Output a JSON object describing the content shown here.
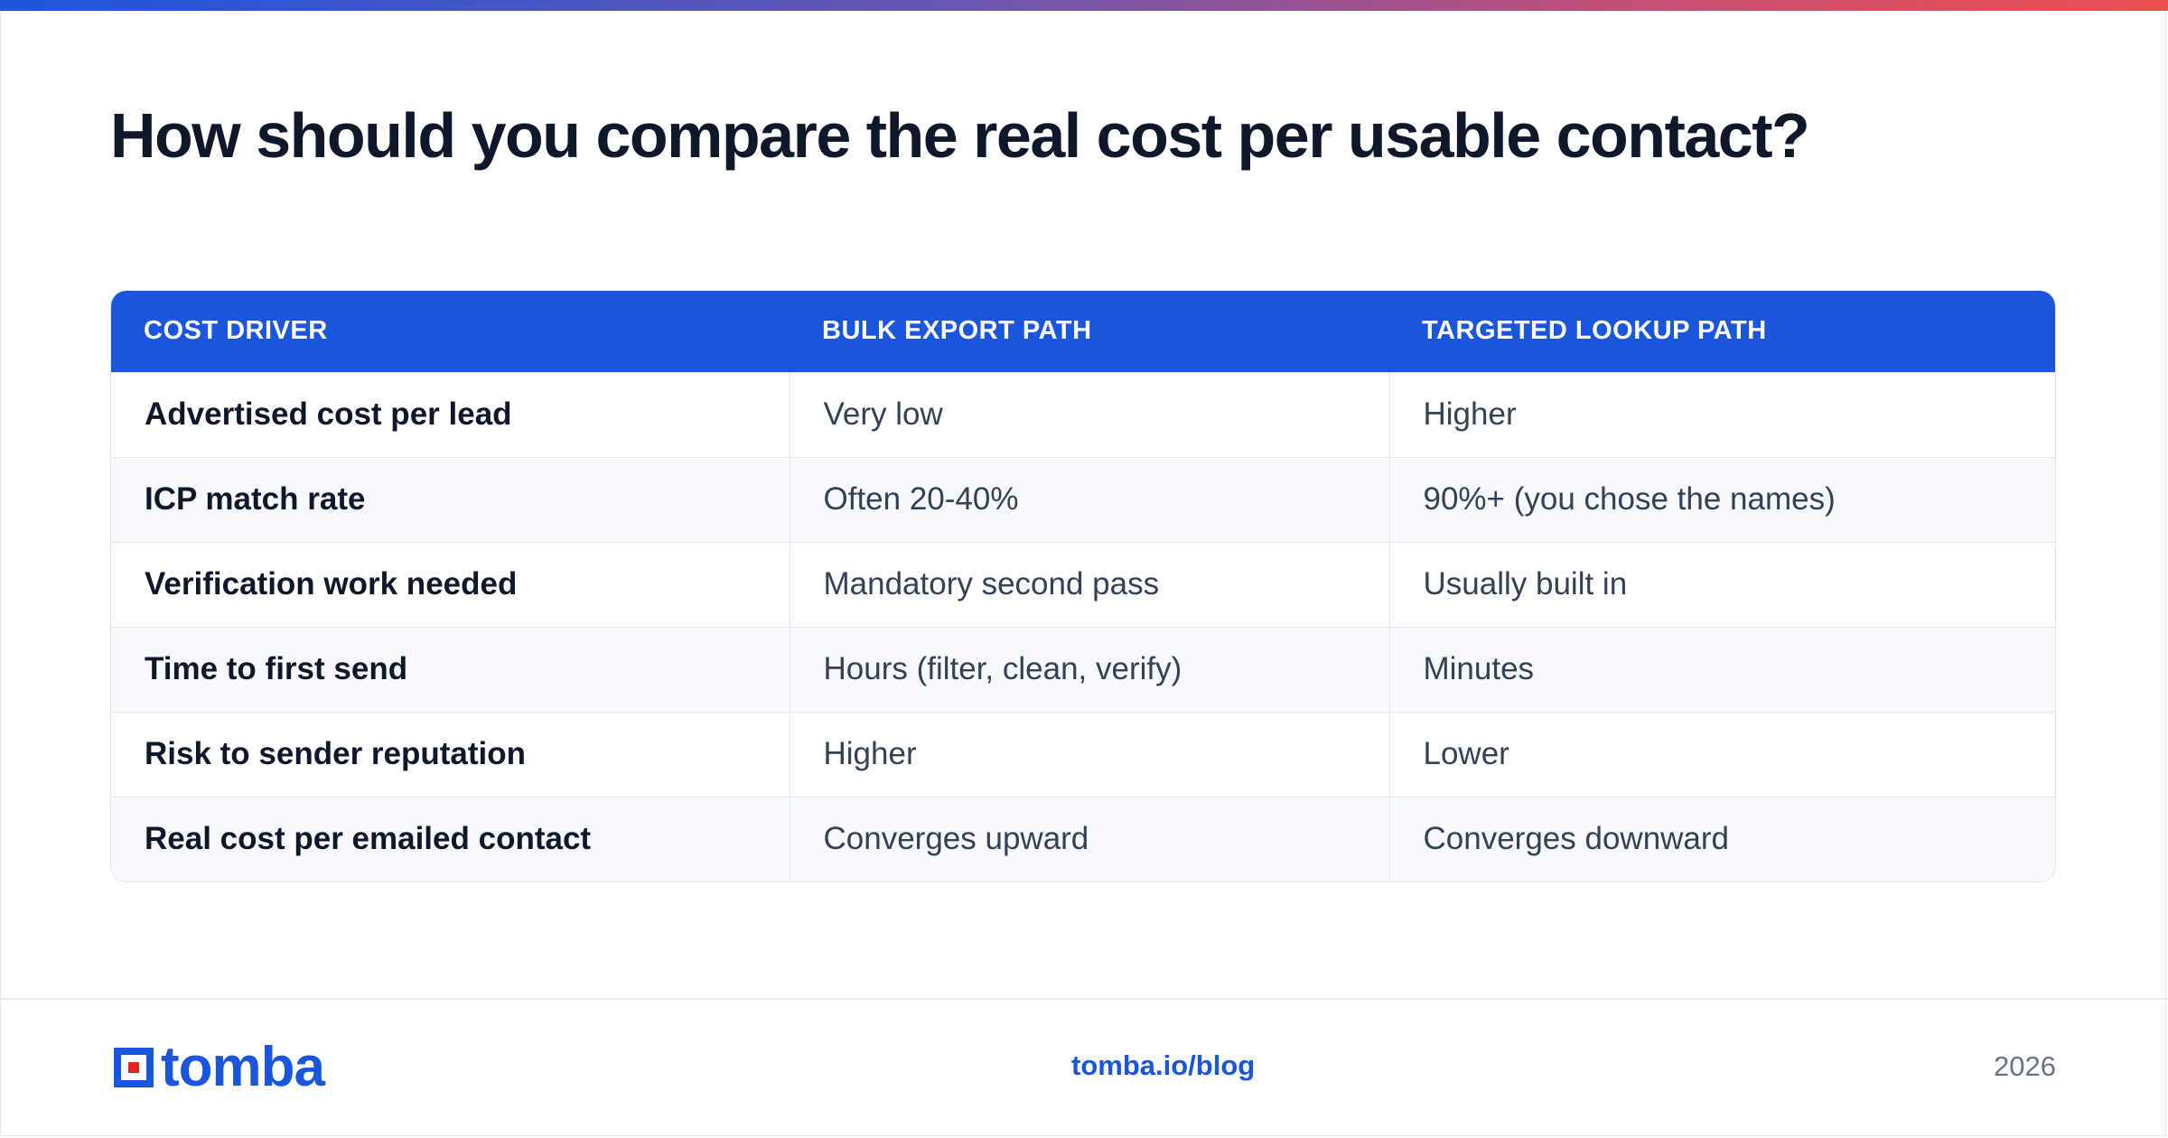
{
  "title": "How should you compare the real cost per usable contact?",
  "table": {
    "headers": [
      "COST DRIVER",
      "BULK EXPORT PATH",
      "TARGETED LOOKUP PATH"
    ],
    "rows": [
      [
        "Advertised cost per lead",
        "Very low",
        "Higher"
      ],
      [
        "ICP match rate",
        "Often 20-40%",
        "90%+ (you chose the names)"
      ],
      [
        "Verification work needed",
        "Mandatory second pass",
        "Usually built in"
      ],
      [
        "Time to first send",
        "Hours (filter, clean, verify)",
        "Minutes"
      ],
      [
        "Risk to sender reputation",
        "Higher",
        "Lower"
      ],
      [
        "Real cost per emailed contact",
        "Converges upward",
        "Converges downward"
      ]
    ]
  },
  "footer": {
    "brand": "tomba",
    "link": "tomba.io/blog",
    "year": "2026"
  },
  "colors": {
    "accent": "#1a56db",
    "logo_red": "#e02424"
  },
  "icons": {
    "logo": "tomba-logo-icon"
  }
}
